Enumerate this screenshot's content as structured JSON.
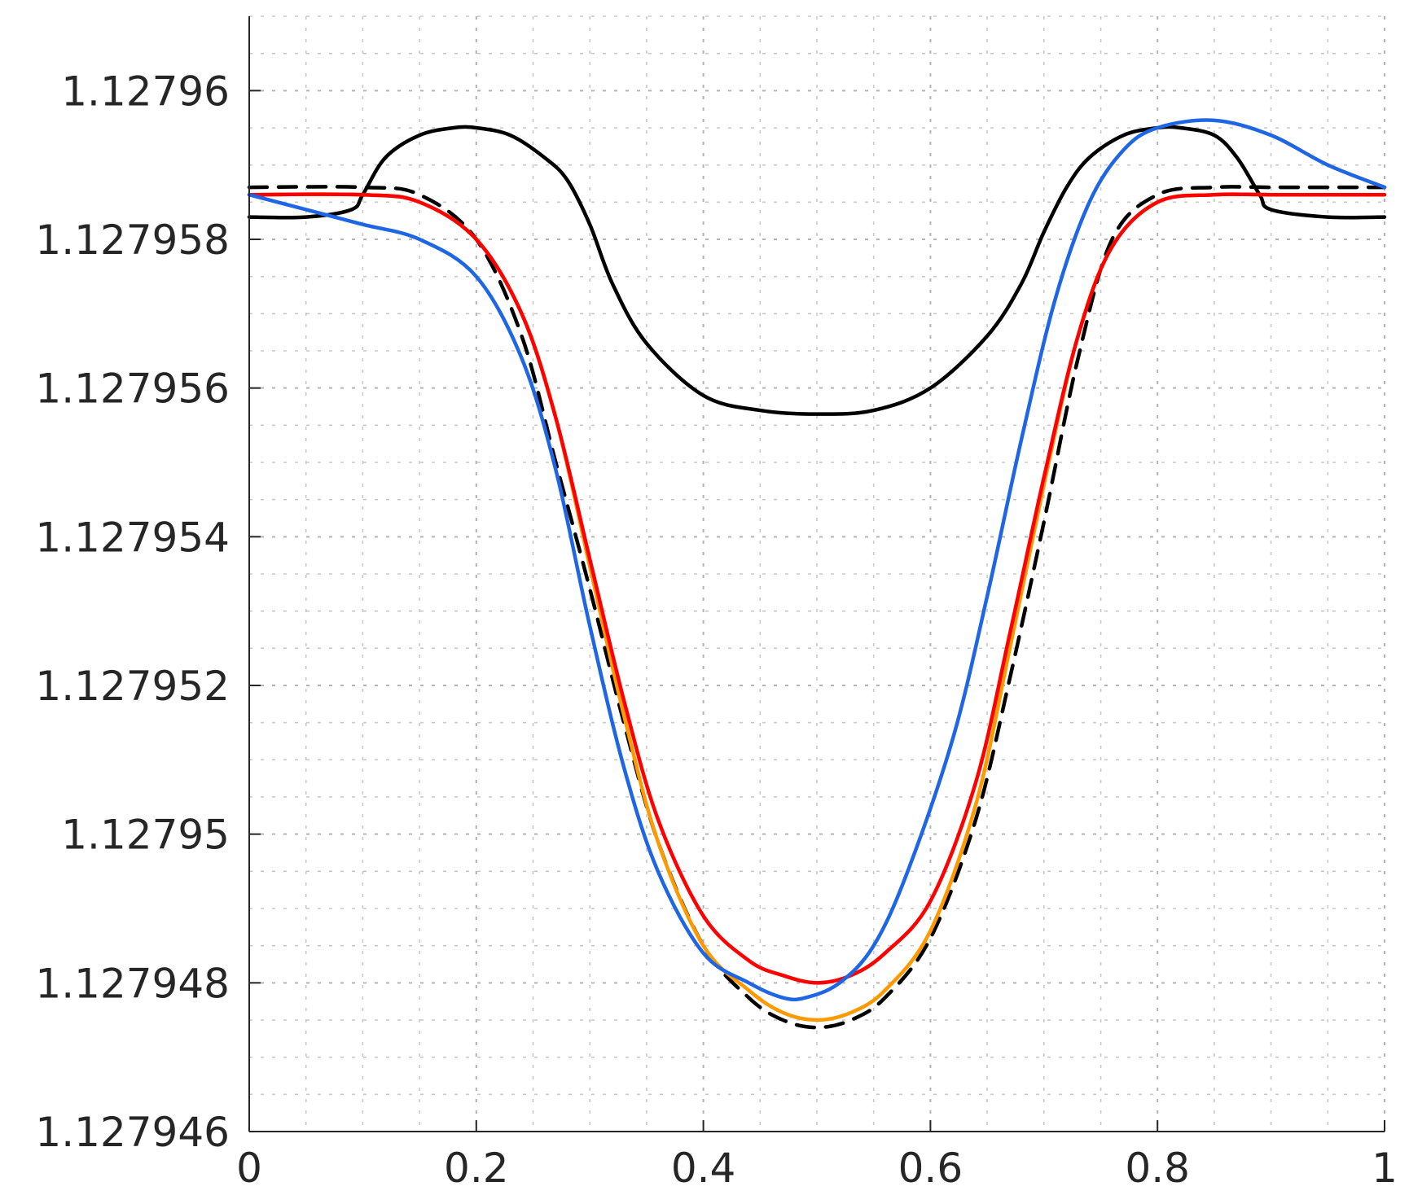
{
  "chart_data": {
    "type": "line",
    "title": "",
    "xlabel": "",
    "ylabel": "",
    "xlim": [
      0,
      1
    ],
    "ylim": [
      1.127946,
      1.127961
    ],
    "grid": true,
    "minor_grid": true,
    "legend": "none",
    "x_ticks": [
      {
        "value": 0,
        "label": "0"
      },
      {
        "value": 0.2,
        "label": "0.2"
      },
      {
        "value": 0.4,
        "label": "0.4"
      },
      {
        "value": 0.6,
        "label": "0.6"
      },
      {
        "value": 0.8,
        "label": "0.8"
      },
      {
        "value": 1,
        "label": "1"
      }
    ],
    "y_ticks": [
      {
        "value": 1.127946,
        "label": "1.127946"
      },
      {
        "value": 1.127948,
        "label": "1.127948"
      },
      {
        "value": 1.12795,
        "label": "1.12795"
      },
      {
        "value": 1.127952,
        "label": "1.127952"
      },
      {
        "value": 1.127954,
        "label": "1.127954"
      },
      {
        "value": 1.127956,
        "label": "1.127956"
      },
      {
        "value": 1.127958,
        "label": "1.127958"
      },
      {
        "value": 1.12796,
        "label": "1.12796"
      }
    ],
    "series": [
      {
        "color": "#000000",
        "dash": "solid",
        "x": [
          0,
          0.05,
          0.09,
          0.1,
          0.12,
          0.15,
          0.18,
          0.2,
          0.23,
          0.26,
          0.28,
          0.3,
          0.32,
          0.35,
          0.4,
          0.45,
          0.5,
          0.55,
          0.6,
          0.65,
          0.68,
          0.7,
          0.72,
          0.74,
          0.77,
          0.8,
          0.82,
          0.85,
          0.87,
          0.89,
          0.9,
          0.95,
          1
        ],
        "y": [
          1.1279583,
          1.1279583,
          1.1279584,
          1.1279586,
          1.1279591,
          1.1279594,
          1.1279595,
          1.1279595,
          1.1279594,
          1.1279591,
          1.1279588,
          1.1279582,
          1.1279574,
          1.1279566,
          1.1279559,
          1.1279557,
          1.12795565,
          1.1279557,
          1.127956,
          1.1279567,
          1.1279574,
          1.1279581,
          1.1279587,
          1.1279591,
          1.1279594,
          1.1279595,
          1.1279595,
          1.1279594,
          1.1279591,
          1.1279586,
          1.1279584,
          1.1279583,
          1.1279583
        ]
      },
      {
        "color": "#000000",
        "dash": "dashed",
        "x": [
          0,
          0.1,
          0.15,
          0.2,
          0.24,
          0.27,
          0.3,
          0.33,
          0.36,
          0.4,
          0.44,
          0.47,
          0.5,
          0.53,
          0.56,
          0.6,
          0.64,
          0.67,
          0.7,
          0.73,
          0.76,
          0.8,
          0.85,
          0.9,
          1
        ],
        "y": [
          1.1279587,
          1.1279587,
          1.1279586,
          1.127958,
          1.1279567,
          1.127955,
          1.1279533,
          1.1279515,
          1.1279499,
          1.1279485,
          1.1279478,
          1.1279475,
          1.1279474,
          1.1279475,
          1.1279478,
          1.1279486,
          1.1279502,
          1.1279521,
          1.1279542,
          1.1279564,
          1.127958,
          1.1279586,
          1.1279587,
          1.1279587,
          1.1279587
        ]
      },
      {
        "color": "#ff9900",
        "dash": "solid",
        "x": [
          0,
          0.1,
          0.15,
          0.2,
          0.24,
          0.27,
          0.3,
          0.33,
          0.36,
          0.4,
          0.44,
          0.47,
          0.5,
          0.53,
          0.56,
          0.6,
          0.64,
          0.67,
          0.7,
          0.73,
          0.76,
          0.8,
          0.85,
          0.9,
          1
        ],
        "y": [
          1.1279586,
          1.1279586,
          1.1279585,
          1.127958,
          1.127957,
          1.1279556,
          1.1279536,
          1.1279516,
          1.1279499,
          1.1279485,
          1.1279479,
          1.1279476,
          1.1279475,
          1.1279476,
          1.1279479,
          1.1279487,
          1.1279504,
          1.1279525,
          1.1279547,
          1.1279567,
          1.1279579,
          1.1279585,
          1.1279586,
          1.1279586,
          1.1279586
        ]
      },
      {
        "color": "#ff0000",
        "dash": "solid",
        "x": [
          0,
          0.1,
          0.15,
          0.2,
          0.24,
          0.27,
          0.3,
          0.33,
          0.36,
          0.4,
          0.44,
          0.47,
          0.5,
          0.53,
          0.56,
          0.6,
          0.64,
          0.67,
          0.7,
          0.73,
          0.76,
          0.8,
          0.85,
          0.9,
          1
        ],
        "y": [
          1.1279586,
          1.1279586,
          1.1279585,
          1.127958,
          1.127957,
          1.1279556,
          1.1279537,
          1.1279518,
          1.1279502,
          1.1279489,
          1.1279483,
          1.1279481,
          1.127948,
          1.1279481,
          1.1279484,
          1.1279491,
          1.1279507,
          1.1279527,
          1.1279548,
          1.1279567,
          1.1279579,
          1.1279585,
          1.1279586,
          1.1279586,
          1.1279586
        ]
      },
      {
        "color": "#1f66e5",
        "dash": "solid",
        "x": [
          0,
          0.05,
          0.1,
          0.15,
          0.2,
          0.24,
          0.27,
          0.3,
          0.33,
          0.36,
          0.4,
          0.44,
          0.47,
          0.49,
          0.52,
          0.55,
          0.58,
          0.62,
          0.65,
          0.68,
          0.71,
          0.74,
          0.77,
          0.8,
          0.85,
          0.9,
          0.95,
          1
        ],
        "y": [
          1.1279586,
          1.1279584,
          1.1279582,
          1.127958,
          1.1279575,
          1.1279564,
          1.1279549,
          1.1279528,
          1.1279509,
          1.1279495,
          1.1279484,
          1.127948,
          1.1279478,
          1.1279478,
          1.127948,
          1.1279485,
          1.1279495,
          1.1279513,
          1.1279532,
          1.1279553,
          1.1279572,
          1.1279585,
          1.1279592,
          1.1279595,
          1.1279596,
          1.1279594,
          1.127959,
          1.1279587
        ]
      }
    ]
  }
}
